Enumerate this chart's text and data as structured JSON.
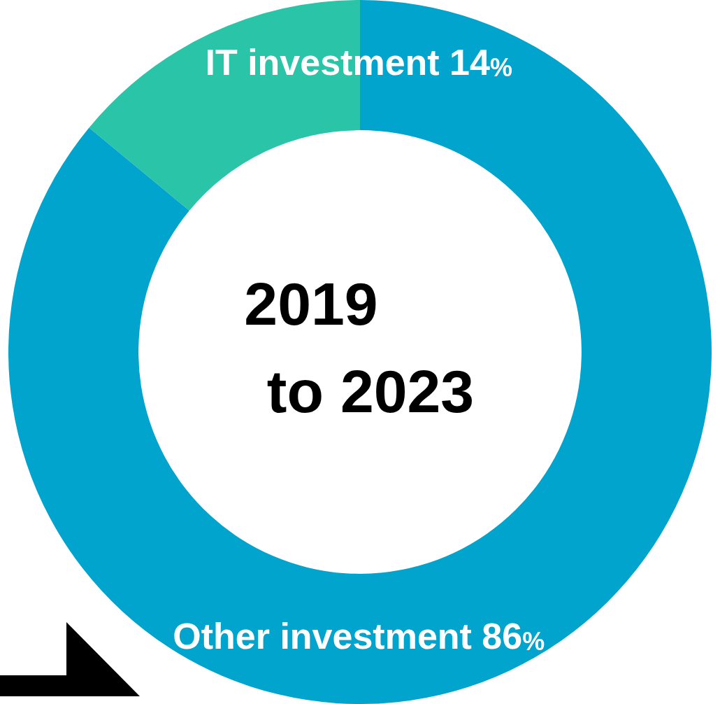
{
  "chart_data": {
    "type": "donut",
    "categories": [
      "IT investment",
      "Other investment"
    ],
    "values": [
      14,
      86
    ],
    "colors": [
      "#2ac4a8",
      "#00a4cc"
    ],
    "value_labels": [
      "14%",
      "86%"
    ],
    "annotations": [
      "2019",
      "to 2023"
    ],
    "legend": false
  }
}
